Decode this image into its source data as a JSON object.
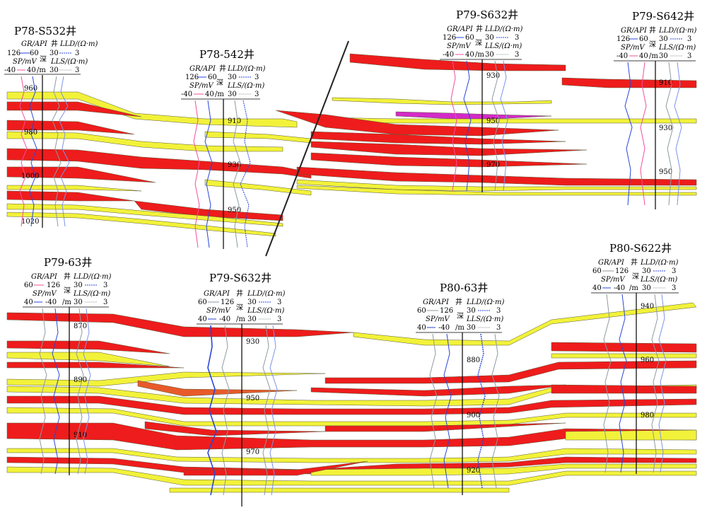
{
  "colors": {
    "sand_yellow": "#f2f23a",
    "sand_red": "#ee1c1c",
    "sand_magenta": "#d42ac8",
    "sand_orange": "#e85a2a",
    "curve_red": "#f0509a",
    "curve_blue": "#2a46d8",
    "curve_lightblue": "#7c93e6",
    "curve_gray": "#8e9aa0",
    "well_axis": "#000000"
  },
  "wells": [
    {
      "id": "w1",
      "name": "P78-S532井",
      "hdr_gr": "GR/API",
      "hdr_well": "井",
      "hdr_lld": "LLD/(Ω·m)",
      "gr_range": [
        "126",
        "60"
      ],
      "lld_range": [
        "30",
        "3"
      ],
      "hdr_sp": "SP/mV",
      "hdr_depth": "深",
      "hdr_lls": "LLS/(Ω·m)",
      "sp_range": [
        "-40",
        "40"
      ],
      "depth_unit": "/m",
      "lls_range": [
        "30",
        "3"
      ],
      "depths": [
        "960",
        "980",
        "1000",
        "1020"
      ]
    },
    {
      "id": "w2",
      "name": "P78-542井",
      "hdr_gr": "GR/API",
      "hdr_well": "井",
      "hdr_lld": "LLD/(Ω·m)",
      "gr_range": [
        "126",
        "60"
      ],
      "lld_range": [
        "30",
        "3"
      ],
      "hdr_sp": "SP/mV",
      "hdr_depth": "深",
      "hdr_lls": "LLS/(Ω·m)",
      "sp_range": [
        "-40",
        "40"
      ],
      "depth_unit": "/m",
      "lls_range": [
        "30",
        "3"
      ],
      "depths": [
        "910",
        "930",
        "950"
      ]
    },
    {
      "id": "w3",
      "name": "P79-S632井",
      "hdr_gr": "GR/API",
      "hdr_well": "井",
      "hdr_lld": "LLD/(Ω·m)",
      "gr_range": [
        "126",
        "60"
      ],
      "lld_range": [
        "30",
        "3"
      ],
      "hdr_sp": "SP/mV",
      "hdr_depth": "深",
      "hdr_lls": "LLS/(Ω·m)",
      "sp_range": [
        "-40",
        "40"
      ],
      "depth_unit": "/m",
      "lls_range": [
        "30",
        "3"
      ],
      "depths": [
        "930",
        "950",
        "970"
      ]
    },
    {
      "id": "w4",
      "name": "P79-S642井",
      "hdr_gr": "GR/API",
      "hdr_well": "井",
      "hdr_lld": "LLD/(Ω·m)",
      "gr_range": [
        "126",
        "60"
      ],
      "lld_range": [
        "30",
        "3"
      ],
      "hdr_sp": "SP/mV",
      "hdr_depth": "深",
      "hdr_lls": "LLS/(Ω·m)",
      "sp_range": [
        "-40",
        "40"
      ],
      "depth_unit": "/m",
      "lls_range": [
        "30",
        "3"
      ],
      "depths": [
        "910",
        "930",
        "950"
      ]
    },
    {
      "id": "w5",
      "name": "P79-63井",
      "hdr_gr": "GR/API",
      "hdr_well": "井",
      "hdr_lld": "LLD/(Ω·m)",
      "gr_range": [
        "60",
        "126"
      ],
      "lld_range": [
        "30",
        "3"
      ],
      "hdr_sp": "SP/mV",
      "hdr_depth": "深",
      "hdr_lls": "LLS/(Ω·m)",
      "sp_range": [
        "40",
        "-40"
      ],
      "depth_unit": "/m",
      "lls_range": [
        "30",
        "3"
      ],
      "depths": [
        "870",
        "890",
        "910"
      ]
    },
    {
      "id": "w6",
      "name": "P79-S632井",
      "hdr_gr": "GR/API",
      "hdr_well": "井",
      "hdr_lld": "LLD/(Ω·m)",
      "gr_range": [
        "60",
        "126"
      ],
      "lld_range": [
        "30",
        "3"
      ],
      "hdr_sp": "SP/mV",
      "hdr_depth": "深",
      "hdr_lls": "LLS/(Ω·m)",
      "sp_range": [
        "40",
        "-40"
      ],
      "depth_unit": "/m",
      "lls_range": [
        "30",
        "3"
      ],
      "depths": [
        "930",
        "950",
        "970"
      ]
    },
    {
      "id": "w7",
      "name": "P80-63井",
      "hdr_gr": "GR/API",
      "hdr_well": "井",
      "hdr_lld": "LLD/(Ω·m)",
      "gr_range": [
        "60",
        "126"
      ],
      "lld_range": [
        "30",
        "3"
      ],
      "hdr_sp": "SP/mV",
      "hdr_depth": "深",
      "hdr_lls": "LLS/(Ω·m)",
      "sp_range": [
        "40",
        "-40"
      ],
      "depth_unit": "/m",
      "lls_range": [
        "30",
        "3"
      ],
      "depths": [
        "880",
        "900",
        "920"
      ]
    },
    {
      "id": "w8",
      "name": "P80-S622井",
      "hdr_gr": "GR/API",
      "hdr_well": "井",
      "hdr_lld": "LLD/(Ω·m)",
      "gr_range": [
        "60",
        "126"
      ],
      "lld_range": [
        "30",
        "3"
      ],
      "hdr_sp": "SP/mV",
      "hdr_depth": "深",
      "hdr_lls": "LLS/(Ω·m)",
      "sp_range": [
        "40",
        "-40"
      ],
      "depth_unit": "/m",
      "lls_range": [
        "30",
        "3"
      ],
      "depths": [
        "940",
        "960",
        "980"
      ]
    }
  ]
}
